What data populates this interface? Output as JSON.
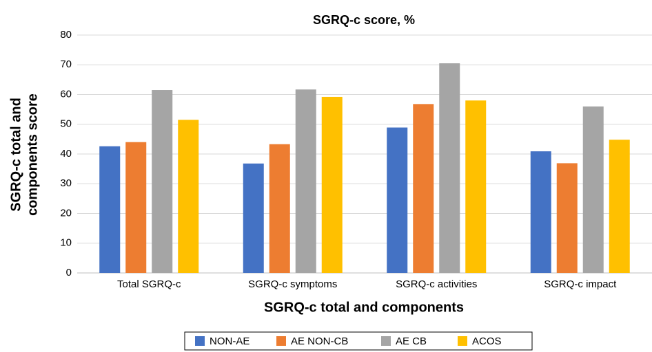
{
  "chart_data": {
    "type": "bar",
    "title": "SGRQ-c score, %",
    "xlabel": "SGRQ-c total and components",
    "ylabel": [
      "SGRQ-c total and",
      "components score"
    ],
    "categories": [
      "Total SGRQ-c",
      "SGRQ-c symptoms",
      "SGRQ-c activities",
      "SGRQ-c impact"
    ],
    "series": [
      {
        "name": "NON-AE",
        "color": "#4472c4",
        "values": [
          42.6,
          36.8,
          48.9,
          40.9
        ]
      },
      {
        "name": "AE NON-CB",
        "color": "#ed7d31",
        "values": [
          44.0,
          43.3,
          56.8,
          36.9
        ]
      },
      {
        "name": "AE CB",
        "color": "#a5a5a5",
        "values": [
          61.5,
          61.7,
          70.5,
          56.0
        ]
      },
      {
        "name": "ACOS",
        "color": "#ffc000",
        "values": [
          51.5,
          59.2,
          58.0,
          44.8
        ]
      }
    ],
    "ylim": [
      0,
      80
    ],
    "yticks": [
      0,
      10,
      20,
      30,
      40,
      50,
      60,
      70,
      80
    ],
    "grid": true,
    "legend": "bottom"
  }
}
